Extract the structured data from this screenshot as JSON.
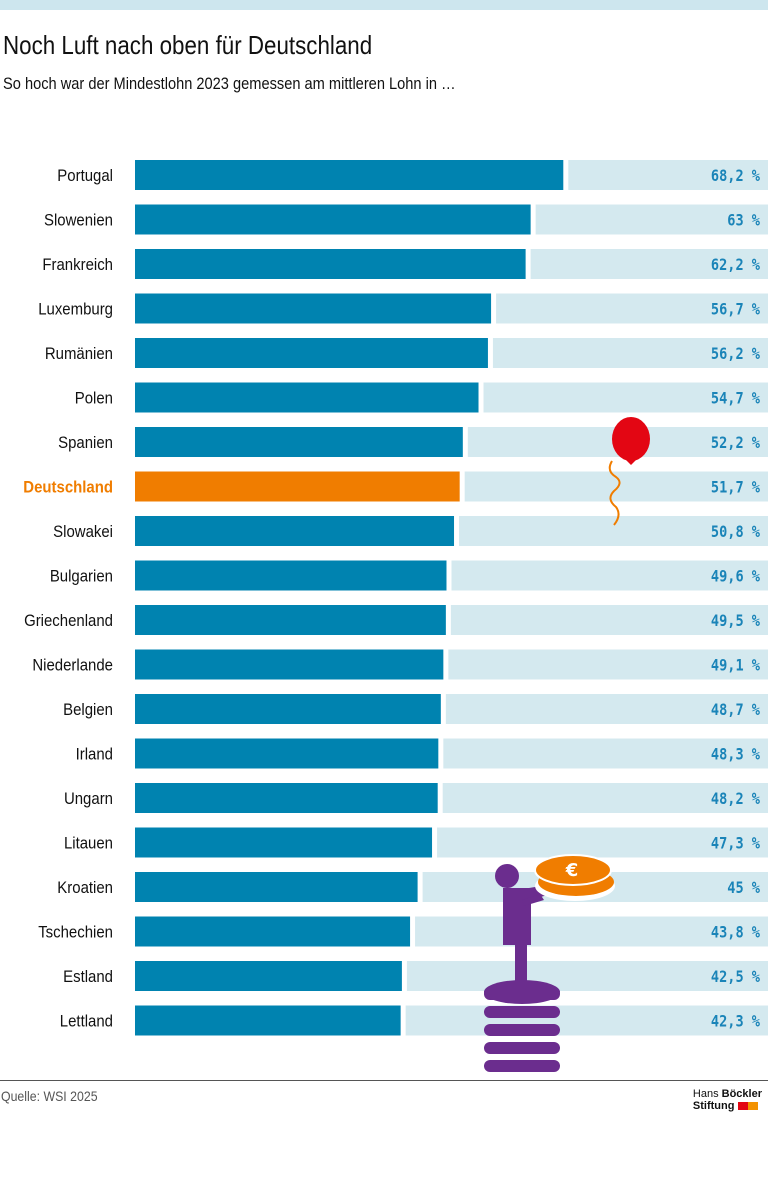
{
  "title": "Noch Luft nach oben für Deutschland",
  "subtitle": "So hoch war der Mindestlohn 2023 gemessen am mittleren Lohn in …",
  "source": "Quelle: WSI 2025",
  "logo": {
    "line1a": "Hans",
    "line1b": "Böckler",
    "line2": "Stiftung"
  },
  "colors": {
    "bar": "#0083b0",
    "highlight": "#f07d00",
    "track": "#d4e9ef",
    "value_text": "#1a84b8",
    "highlight_text": "#f07d00"
  },
  "chart_data": {
    "type": "bar",
    "orientation": "horizontal",
    "unit": "%",
    "xlim": [
      0,
      100
    ],
    "highlight": "Deutschland",
    "categories": [
      "Portugal",
      "Slowenien",
      "Frankreich",
      "Luxemburg",
      "Rumänien",
      "Polen",
      "Spanien",
      "Deutschland",
      "Slowakei",
      "Bulgarien",
      "Griechenland",
      "Niederlande",
      "Belgien",
      "Irland",
      "Ungarn",
      "Litauen",
      "Kroatien",
      "Tschechien",
      "Estland",
      "Lettland"
    ],
    "values": [
      68.2,
      63,
      62.2,
      56.7,
      56.2,
      54.7,
      52.2,
      51.7,
      50.8,
      49.6,
      49.5,
      49.1,
      48.7,
      48.3,
      48.2,
      47.3,
      45,
      43.8,
      42.5,
      42.3
    ],
    "labels": [
      "68,2 %",
      "63 %",
      "62,2 %",
      "56,7 %",
      "56,2 %",
      "54,7 %",
      "52,2 %",
      "51,7 %",
      "50,8 %",
      "49,6 %",
      "49,5 %",
      "49,1 %",
      "48,7 %",
      "48,3 %",
      "48,2 %",
      "47,3 %",
      "45 %",
      "43,8 %",
      "42,5 %",
      "42,3 %"
    ]
  }
}
